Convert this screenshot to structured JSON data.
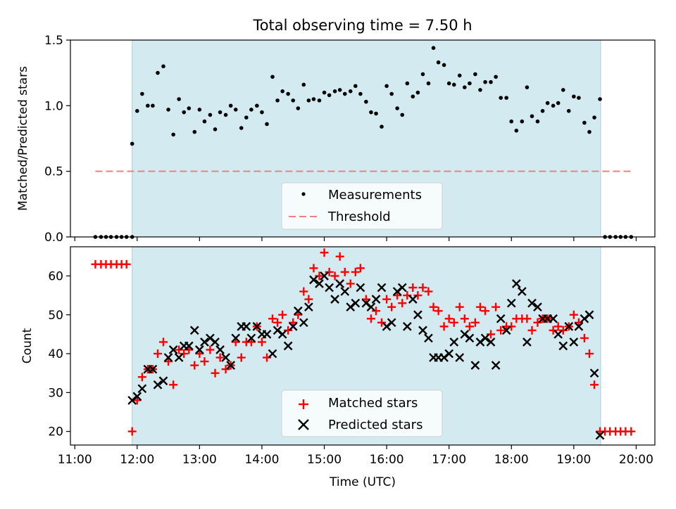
{
  "title": "Total observing time = 7.50 h",
  "colors": {
    "shade": "#d3eaf0",
    "shade_edge": "#a6d0db",
    "measurement": "#000000",
    "threshold": "#f08080",
    "matched": "#ff0000",
    "predicted": "#000000"
  },
  "chart_data": [
    {
      "type": "scatter",
      "title": "Total observing time = 7.50 h",
      "xlabel": "",
      "ylabel": "Matched/Predicted stars",
      "xlim": [
        10.93,
        20.3
      ],
      "ylim": [
        0,
        1.5
      ],
      "yticks": [
        0.0,
        0.5,
        1.0,
        1.5
      ],
      "ytick_labels": [
        "0.0",
        "0.5",
        "1.0",
        "1.5"
      ],
      "observing_window": [
        11.92,
        19.43
      ],
      "legend_position": "lower center",
      "series": [
        {
          "name": "Measurements",
          "marker": "dot",
          "x": [
            11.33,
            11.42,
            11.5,
            11.58,
            11.67,
            11.75,
            11.83,
            11.92,
            11.92,
            12.0,
            12.08,
            12.17,
            12.25,
            12.33,
            12.42,
            12.5,
            12.58,
            12.67,
            12.75,
            12.83,
            12.92,
            13.0,
            13.08,
            13.17,
            13.25,
            13.33,
            13.42,
            13.5,
            13.58,
            13.67,
            13.75,
            13.83,
            13.92,
            14.0,
            14.08,
            14.17,
            14.25,
            14.33,
            14.42,
            14.5,
            14.58,
            14.67,
            14.75,
            14.83,
            14.92,
            15.0,
            15.08,
            15.17,
            15.25,
            15.33,
            15.42,
            15.5,
            15.58,
            15.67,
            15.75,
            15.83,
            15.92,
            16.0,
            16.08,
            16.17,
            16.25,
            16.33,
            16.42,
            16.5,
            16.58,
            16.67,
            16.75,
            16.83,
            16.92,
            17.0,
            17.08,
            17.17,
            17.25,
            17.33,
            17.42,
            17.5,
            17.58,
            17.67,
            17.75,
            17.83,
            17.92,
            18.0,
            18.08,
            18.17,
            18.25,
            18.33,
            18.42,
            18.5,
            18.58,
            18.67,
            18.75,
            18.83,
            18.92,
            19.0,
            19.08,
            19.17,
            19.25,
            19.33,
            19.42,
            19.5,
            19.58,
            19.67,
            19.75,
            19.83,
            19.92
          ],
          "y": [
            0,
            0,
            0,
            0,
            0,
            0,
            0,
            0,
            0.71,
            0.96,
            1.09,
            1.0,
            1.0,
            1.25,
            1.3,
            0.97,
            0.78,
            1.05,
            0.95,
            0.98,
            0.8,
            0.97,
            0.88,
            0.93,
            0.82,
            0.95,
            0.93,
            1.0,
            0.97,
            0.83,
            0.91,
            0.97,
            1.0,
            0.95,
            0.86,
            1.22,
            1.04,
            1.11,
            1.09,
            1.04,
            0.98,
            1.16,
            1.04,
            1.05,
            1.04,
            1.1,
            1.08,
            1.11,
            1.12,
            1.09,
            1.11,
            1.15,
            1.09,
            1.03,
            0.95,
            0.94,
            0.84,
            1.15,
            1.09,
            0.98,
            0.93,
            1.17,
            1.07,
            1.1,
            1.24,
            1.17,
            1.44,
            1.33,
            1.31,
            1.17,
            1.16,
            1.23,
            1.14,
            1.17,
            1.24,
            1.12,
            1.18,
            1.18,
            1.22,
            1.06,
            1.06,
            0.88,
            0.81,
            0.88,
            1.14,
            0.92,
            0.88,
            0.96,
            1.02,
            1.0,
            1.02,
            1.12,
            0.96,
            1.07,
            1.06,
            0.87,
            0.8,
            0.91,
            1.05,
            0,
            0,
            0,
            0,
            0,
            0
          ]
        },
        {
          "name": "Threshold",
          "marker": "dashed-line",
          "x": [
            11.33,
            19.92
          ],
          "y": [
            0.5,
            0.5
          ]
        }
      ]
    },
    {
      "type": "scatter",
      "title": "",
      "xlabel": "Time (UTC)",
      "ylabel": "Count",
      "xlim": [
        10.93,
        20.3
      ],
      "ylim": [
        16.5,
        67.5
      ],
      "yticks": [
        20,
        30,
        40,
        50,
        60
      ],
      "xticks": [
        11,
        12,
        13,
        14,
        15,
        16,
        17,
        18,
        19,
        20
      ],
      "xtick_labels": [
        "11:00",
        "12:00",
        "13:00",
        "14:00",
        "15:00",
        "16:00",
        "17:00",
        "18:00",
        "19:00",
        "20:00"
      ],
      "observing_window": [
        11.92,
        19.43
      ],
      "legend_position": "lower center",
      "series": [
        {
          "name": "Matched stars",
          "marker": "plus",
          "x": [
            11.33,
            11.42,
            11.5,
            11.58,
            11.67,
            11.75,
            11.83,
            11.92,
            12.0,
            12.08,
            12.17,
            12.25,
            12.33,
            12.42,
            12.5,
            12.58,
            12.67,
            12.75,
            12.83,
            12.92,
            13.0,
            13.08,
            13.17,
            13.25,
            13.33,
            13.42,
            13.5,
            13.58,
            13.67,
            13.75,
            13.83,
            13.92,
            14.0,
            14.08,
            14.17,
            14.25,
            14.33,
            14.42,
            14.5,
            14.58,
            14.67,
            14.75,
            14.83,
            14.92,
            15.0,
            15.08,
            15.17,
            15.25,
            15.33,
            15.42,
            15.5,
            15.58,
            15.67,
            15.75,
            15.83,
            15.92,
            16.0,
            16.08,
            16.17,
            16.25,
            16.33,
            16.42,
            16.5,
            16.58,
            16.67,
            16.75,
            16.83,
            16.92,
            17.0,
            17.08,
            17.17,
            17.25,
            17.33,
            17.42,
            17.5,
            17.58,
            17.67,
            17.75,
            17.83,
            17.92,
            18.0,
            18.08,
            18.17,
            18.25,
            18.33,
            18.42,
            18.5,
            18.58,
            18.67,
            18.75,
            18.83,
            18.92,
            19.0,
            19.08,
            19.17,
            19.25,
            19.33,
            19.42,
            19.5,
            19.58,
            19.67,
            19.75,
            19.83,
            19.92
          ],
          "y": [
            63,
            63,
            63,
            63,
            63,
            63,
            63,
            20,
            28,
            34,
            36,
            36,
            40,
            43,
            38,
            32,
            41,
            40,
            41,
            37,
            40,
            38,
            41,
            35,
            39,
            36,
            37,
            43,
            39,
            43,
            43,
            47,
            43,
            39,
            49,
            48,
            50,
            46,
            48,
            50,
            56,
            54,
            62,
            60,
            66,
            61,
            60,
            65,
            61,
            58,
            61,
            62,
            54,
            49,
            51,
            48,
            54,
            52,
            55,
            53,
            55,
            57,
            55,
            57,
            56,
            52,
            51,
            47,
            49,
            48,
            52,
            49,
            47,
            48,
            52,
            51,
            45,
            52,
            46,
            47,
            47,
            49,
            49,
            49,
            46,
            48,
            49,
            49,
            46,
            47,
            46,
            47,
            50,
            48,
            44,
            40,
            32,
            20,
            20,
            20,
            20,
            20,
            20,
            20
          ],
          "x_note": ""
        },
        {
          "name": "Predicted stars",
          "marker": "cross",
          "x": [
            11.92,
            12.0,
            12.08,
            12.17,
            12.25,
            12.33,
            12.42,
            12.5,
            12.58,
            12.67,
            12.75,
            12.83,
            12.92,
            13.0,
            13.08,
            13.17,
            13.25,
            13.33,
            13.42,
            13.5,
            13.58,
            13.67,
            13.75,
            13.83,
            13.92,
            14.0,
            14.08,
            14.17,
            14.25,
            14.33,
            14.42,
            14.5,
            14.58,
            14.67,
            14.75,
            14.83,
            14.92,
            15.0,
            15.08,
            15.17,
            15.25,
            15.33,
            15.42,
            15.5,
            15.58,
            15.67,
            15.75,
            15.83,
            15.92,
            16.0,
            16.08,
            16.17,
            16.25,
            16.33,
            16.42,
            16.5,
            16.58,
            16.67,
            16.75,
            16.83,
            16.92,
            17.0,
            17.08,
            17.17,
            17.25,
            17.33,
            17.42,
            17.5,
            17.58,
            17.67,
            17.75,
            17.83,
            17.92,
            18.0,
            18.08,
            18.17,
            18.25,
            18.33,
            18.42,
            18.5,
            18.58,
            18.67,
            18.75,
            18.83,
            18.92,
            19.0,
            19.08,
            19.17,
            19.25,
            19.33,
            19.42
          ],
          "y": [
            28,
            29,
            31,
            36,
            36,
            32,
            33,
            39,
            41,
            39,
            42,
            42,
            46,
            41,
            43,
            44,
            43,
            41,
            39,
            37,
            44,
            47,
            47,
            44,
            47,
            45,
            45,
            40,
            46,
            45,
            42,
            47,
            51,
            48,
            52,
            59,
            58,
            60,
            57,
            54,
            58,
            56,
            52,
            53,
            57,
            53,
            52,
            54,
            57,
            47,
            48,
            56,
            57,
            47,
            54,
            50,
            46,
            44,
            39,
            39,
            39,
            40,
            43,
            39,
            45,
            44,
            37,
            43,
            44,
            43,
            37,
            49,
            46,
            53,
            58,
            56,
            43,
            53,
            52,
            49,
            49,
            49,
            45,
            42,
            47,
            43,
            47,
            49,
            50,
            35,
            19
          ]
        }
      ]
    }
  ]
}
